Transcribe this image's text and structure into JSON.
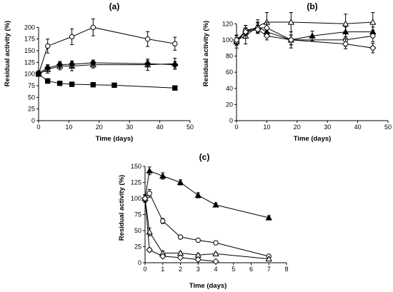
{
  "colors": {
    "line": "#000000",
    "background": "#ffffff"
  },
  "chart_data": [
    {
      "id": "a",
      "type": "line",
      "panel_label": "(a)",
      "xlabel": "Time (days)",
      "ylabel": "Residual activity (%)",
      "xlim": [
        0,
        50
      ],
      "ylim": [
        0,
        225
      ],
      "xticks": [
        0,
        10,
        20,
        30,
        40,
        50
      ],
      "yticks": [
        0,
        25,
        50,
        75,
        100,
        125,
        150,
        175,
        200
      ],
      "grid": false,
      "legend": "none",
      "series": [
        {
          "marker": "circle-open",
          "x": [
            0,
            3,
            11,
            18,
            36,
            45
          ],
          "y": [
            100,
            160,
            180,
            200,
            175,
            165
          ],
          "err": [
            4,
            15,
            17,
            18,
            16,
            14
          ]
        },
        {
          "marker": "triangle-open",
          "x": [
            0,
            3,
            7,
            11,
            18,
            36,
            45
          ],
          "y": [
            100,
            110,
            117,
            117,
            120,
            120,
            122
          ],
          "err": [
            5,
            8,
            8,
            10,
            7,
            12,
            12
          ]
        },
        {
          "marker": "diamond-filled",
          "x": [
            0,
            3,
            7,
            11,
            18,
            36,
            45
          ],
          "y": [
            102,
            113,
            120,
            121,
            124,
            122,
            120
          ],
          "err": [
            5,
            7,
            7,
            7,
            6,
            7,
            7
          ]
        },
        {
          "marker": "square-filled",
          "x": [
            0,
            3,
            7,
            11,
            18,
            25,
            45
          ],
          "y": [
            100,
            85,
            80,
            78,
            77,
            76,
            70
          ],
          "err": [
            4,
            5,
            4,
            4,
            4,
            3,
            4
          ]
        }
      ]
    },
    {
      "id": "b",
      "type": "line",
      "panel_label": "(b)",
      "xlabel": "Time (days)",
      "ylabel": "Residual activity (%)",
      "xlim": [
        0,
        50
      ],
      "ylim": [
        0,
        130
      ],
      "xticks": [
        0,
        10,
        20,
        30,
        40,
        50
      ],
      "yticks": [
        0,
        20,
        40,
        60,
        80,
        100,
        120
      ],
      "grid": false,
      "legend": "none",
      "series": [
        {
          "marker": "triangle-open",
          "x": [
            0,
            3,
            7,
            10,
            18,
            36,
            45
          ],
          "y": [
            100,
            105,
            117,
            122,
            122,
            120,
            122
          ],
          "err": [
            6,
            10,
            8,
            12,
            12,
            12,
            12
          ]
        },
        {
          "marker": "triangle-filled",
          "x": [
            0,
            3,
            7,
            10,
            18,
            25,
            36,
            45
          ],
          "y": [
            98,
            110,
            116,
            110,
            100,
            105,
            110,
            110
          ],
          "err": [
            8,
            8,
            6,
            6,
            6,
            6,
            6,
            6
          ]
        },
        {
          "marker": "circle-open",
          "x": [
            0,
            3,
            7,
            10,
            18,
            36,
            45
          ],
          "y": [
            98,
            112,
            115,
            115,
            100,
            100,
            105
          ],
          "err": [
            5,
            6,
            6,
            7,
            10,
            8,
            7
          ]
        },
        {
          "marker": "diamond-open",
          "x": [
            0,
            3,
            7,
            10,
            18,
            36,
            45
          ],
          "y": [
            100,
            110,
            113,
            105,
            100,
            95,
            90
          ],
          "err": [
            5,
            5,
            5,
            5,
            6,
            6,
            6
          ]
        }
      ]
    },
    {
      "id": "c",
      "type": "line",
      "panel_label": "(c)",
      "xlabel": "Time (days)",
      "ylabel": "Residual activity (%)",
      "xlim": [
        0,
        8
      ],
      "ylim": [
        0,
        150
      ],
      "xticks": [
        0,
        1,
        2,
        3,
        4,
        5,
        6,
        7,
        8
      ],
      "yticks": [
        0,
        25,
        50,
        75,
        100,
        125,
        150
      ],
      "grid": false,
      "legend": "none",
      "series": [
        {
          "marker": "triangle-filled",
          "x": [
            0,
            0.25,
            1,
            2,
            3,
            4,
            7
          ],
          "y": [
            100,
            143,
            135,
            125,
            105,
            90,
            70
          ],
          "err": [
            5,
            6,
            5,
            4,
            4,
            3,
            3
          ]
        },
        {
          "marker": "circle-open",
          "x": [
            0,
            0.25,
            1,
            2,
            3,
            4,
            7
          ],
          "y": [
            100,
            108,
            65,
            40,
            35,
            31,
            10
          ],
          "err": [
            5,
            6,
            4,
            3,
            2,
            2,
            2
          ]
        },
        {
          "marker": "triangle-open",
          "x": [
            0,
            0.25,
            1,
            2,
            3,
            4,
            7
          ],
          "y": [
            100,
            48,
            15,
            15,
            12,
            14,
            6
          ],
          "err": [
            6,
            6,
            3,
            2,
            2,
            2,
            2
          ]
        },
        {
          "marker": "diamond-open",
          "x": [
            0,
            0.25,
            1,
            2,
            3,
            4
          ],
          "y": [
            100,
            20,
            10,
            8,
            5,
            2
          ],
          "err": [
            5,
            3,
            2,
            2,
            2,
            1
          ]
        }
      ]
    }
  ]
}
